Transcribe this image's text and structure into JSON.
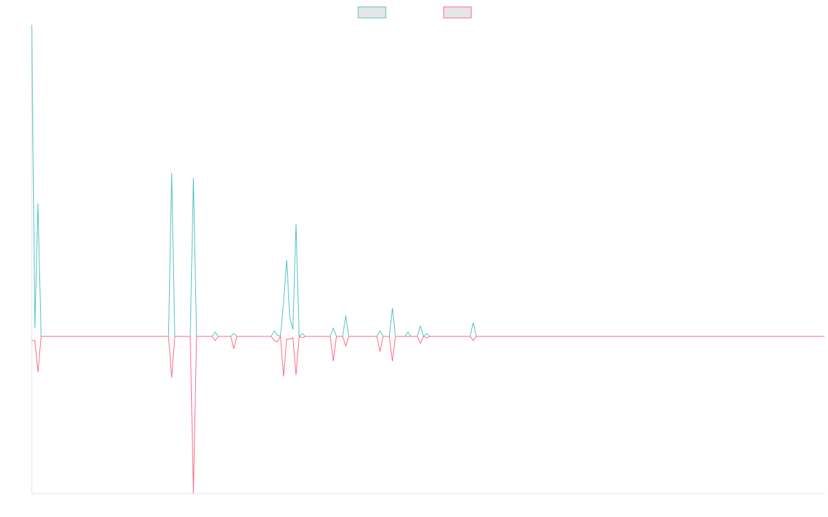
{
  "chart_data": {
    "type": "line",
    "x": [
      0,
      1,
      2,
      3,
      44,
      45,
      46,
      51,
      52,
      53,
      58,
      59,
      60,
      64,
      65,
      66,
      77,
      78,
      79,
      80,
      81,
      82,
      83,
      84,
      85,
      86,
      87,
      88,
      96,
      97,
      98,
      100,
      101,
      102,
      111,
      112,
      113,
      115,
      116,
      117,
      120,
      121,
      122,
      124,
      125,
      126,
      127,
      128,
      141,
      142,
      143,
      255
    ],
    "xlim": [
      0,
      255
    ],
    "ylim": [
      -228,
      452
    ],
    "legend": "top",
    "series": [
      {
        "color": "#4bc0c0",
        "values": [
          452,
          12,
          193,
          0,
          0,
          237,
          0,
          0,
          230,
          0,
          0,
          6,
          0,
          0,
          4,
          0,
          0,
          8,
          2,
          0,
          50,
          111,
          28,
          10,
          163,
          0,
          4,
          0,
          0,
          12,
          0,
          0,
          30,
          0,
          0,
          8,
          0,
          0,
          41,
          0,
          0,
          6,
          0,
          0,
          15,
          0,
          4,
          0,
          0,
          20,
          0,
          0
        ]
      },
      {
        "color": "#ff6384",
        "values": [
          -6,
          -6,
          -52,
          0,
          0,
          -60,
          0,
          0,
          -228,
          0,
          0,
          -6,
          0,
          0,
          -18,
          0,
          0,
          -6,
          -8,
          0,
          -58,
          -4,
          -4,
          -2,
          -56,
          0,
          -2,
          0,
          0,
          -36,
          0,
          0,
          -14,
          0,
          0,
          -22,
          0,
          0,
          -36,
          0,
          0,
          0,
          0,
          0,
          -10,
          0,
          -2,
          0,
          0,
          -6,
          0,
          0
        ]
      }
    ]
  }
}
